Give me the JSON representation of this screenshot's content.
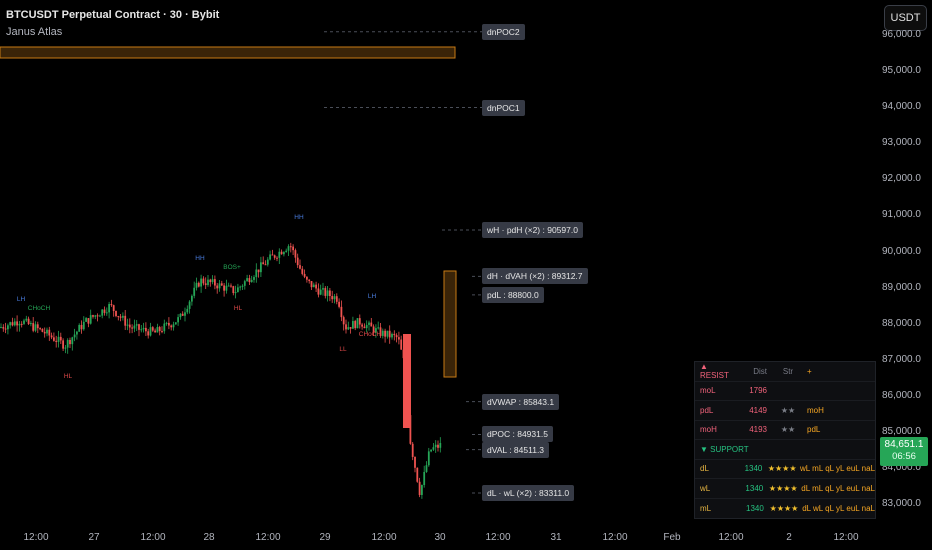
{
  "header": {
    "title": "BTCUSDT Perpetual Contract · 30 · Bybit",
    "indicator": "Janus Atlas"
  },
  "currency_button": "USDT",
  "y_axis": {
    "ticks": [
      "96,000.0",
      "95,000.0",
      "94,000.0",
      "93,000.0",
      "92,000.0",
      "91,000.0",
      "90,000.0",
      "89,000.0",
      "88,000.0",
      "87,000.0",
      "86,000.0",
      "85,000.0",
      "84,000.0",
      "83,000.0"
    ]
  },
  "x_axis": {
    "ticks": [
      "12:00",
      "27",
      "12:00",
      "28",
      "12:00",
      "29",
      "12:00",
      "30",
      "12:00",
      "31",
      "12:00",
      "Feb",
      "12:00",
      "2",
      "12:00"
    ]
  },
  "last_price": {
    "value": "84,651.1",
    "countdown": "06:56"
  },
  "levels": [
    {
      "label": "dnPOC2",
      "price": 96090
    },
    {
      "label": "dnPOC1",
      "price": 93990
    },
    {
      "label": "wH · pdH (×2) : 90597.0",
      "price": 90597
    },
    {
      "label": "dH · dVAH (×2) : 89312.7",
      "price": 89312.7
    },
    {
      "label": "pdL : 88800.0",
      "price": 88800
    },
    {
      "label": "dVWAP : 85843.1",
      "price": 85843.1
    },
    {
      "label": "dPOC : 84931.5",
      "price": 84931.5
    },
    {
      "label": "dVAL : 84511.3",
      "price": 84511.3
    },
    {
      "label": "dL · wL (×2) : 83311.0",
      "price": 83311
    }
  ],
  "structure_labels": [
    {
      "text": "LH",
      "color": "#4a7de0"
    },
    {
      "text": "HL",
      "color": "#e04a4a"
    },
    {
      "text": "CHoCH",
      "color": "#26a657"
    },
    {
      "text": "HH",
      "color": "#4a7de0"
    },
    {
      "text": "BOS+",
      "color": "#26a657"
    },
    {
      "text": "HL",
      "color": "#e04a4a"
    },
    {
      "text": "HH",
      "color": "#4a7de0"
    },
    {
      "text": "LH",
      "color": "#4a7de0"
    },
    {
      "text": "LL",
      "color": "#e04a4a"
    },
    {
      "text": "CHoCH",
      "color": "#e04a4a"
    }
  ],
  "table": {
    "resist_header": {
      "title": "▲ RESIST",
      "dist": "Dist",
      "str": "Str",
      "plus": "+"
    },
    "resist_rows": [
      {
        "name": "moL",
        "dist": "1796",
        "stars": "",
        "extra": ""
      },
      {
        "name": "pdL",
        "dist": "4149",
        "stars": "★★",
        "extra": "moH"
      },
      {
        "name": "moH",
        "dist": "4193",
        "stars": "★★",
        "extra": "pdL"
      }
    ],
    "support_header": "▼ SUPPORT",
    "support_rows": [
      {
        "name": "dL",
        "dist": "1340",
        "stars": "★★★★",
        "extra": "wL mL qL yL euL naL"
      },
      {
        "name": "wL",
        "dist": "1340",
        "stars": "★★★★",
        "extra": "dL mL qL yL euL naL"
      },
      {
        "name": "mL",
        "dist": "1340",
        "stars": "★★★★",
        "extra": "dL wL qL yL euL naL"
      }
    ]
  },
  "colors": {
    "bull": "#26a657",
    "bear": "#ef5350",
    "zone": "#f7931a",
    "background": "#000000"
  }
}
